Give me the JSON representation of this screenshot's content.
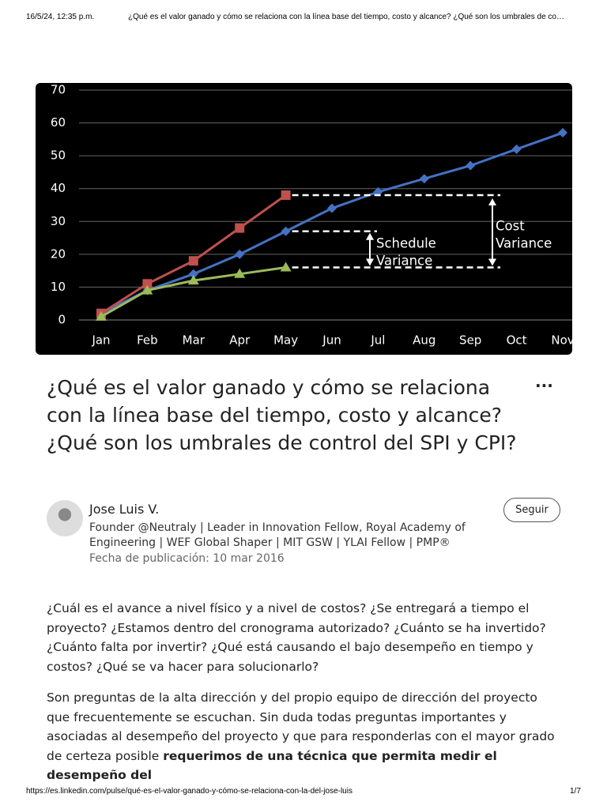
{
  "print_header": {
    "datetime": "16/5/24, 12:35 p.m.",
    "page_title": "¿Qué es el valor ganado y cómo se relaciona con la línea base del tiempo, costo y alcance? ¿Qué son los umbrales de co…"
  },
  "chart_data": {
    "type": "line",
    "categories": [
      "Jan",
      "Feb",
      "Mar",
      "Apr",
      "May",
      "Jun",
      "Jul",
      "Aug",
      "Sep",
      "Oct",
      "Nov"
    ],
    "series": [
      {
        "color": "#4472c4",
        "marker": "diamond",
        "values": [
          2,
          9,
          14,
          20,
          27,
          34,
          39,
          43,
          47,
          52,
          57
        ]
      },
      {
        "color": "#c0504d",
        "marker": "square",
        "values": [
          2,
          11,
          18,
          28,
          38,
          null,
          null,
          null,
          null,
          null,
          null
        ]
      },
      {
        "color": "#9bbb59",
        "marker": "triangle",
        "values": [
          1,
          9,
          12,
          14,
          16,
          null,
          null,
          null,
          null,
          null,
          null
        ]
      }
    ],
    "ylim": [
      0,
      70
    ],
    "yticks": [
      0,
      10,
      20,
      30,
      40,
      50,
      60,
      70
    ],
    "grid": true,
    "annotations": [
      {
        "lines": [
          "Schedule",
          "Variance"
        ]
      },
      {
        "lines": [
          "Cost",
          "Variance"
        ]
      }
    ]
  },
  "article": {
    "title": "¿Qué es el valor ganado y cómo se relaciona con la línea base del tiempo, costo y alcance? ¿Qué son los umbrales de control del SPI y CPI?",
    "menu": "···",
    "author": {
      "name": "Jose Luis V.",
      "headline": "Founder @Neutraly | Leader in Innovation Fellow, Royal Academy of Engineering | WEF Global Shaper | MIT GSW | YLAI Fellow | PMP®",
      "date": "Fecha de publicación: 10 mar 2016"
    },
    "follow_button": "Seguir",
    "paragraphs": [
      [
        "¿Cuál es el avance a nivel físico y a nivel de costos? ¿Se entregará a tiempo el proyecto? ¿Estamos dentro del cronograma autorizado? ¿Cuánto se ha invertido? ¿Cuánto falta por invertir? ¿Qué está causando el bajo desempeño en tiempo y costos? ¿Qué se va hacer para solucionarlo?"
      ],
      [
        "Son preguntas de la alta dirección y del propio equipo de dirección del proyecto que frecuentemente se escuchan. Sin duda todas preguntas importantes y asociadas al desempeño del proyecto y que para responderlas con el mayor grado de certeza posible ",
        "requerimos de una técnica que permita medir el desempeño del"
      ]
    ]
  },
  "print_footer": {
    "url": "https://es.linkedin.com/pulse/qué-es-el-valor-ganado-y-cómo-se-relaciona-con-la-del-jose-luis",
    "page": "1/7"
  }
}
